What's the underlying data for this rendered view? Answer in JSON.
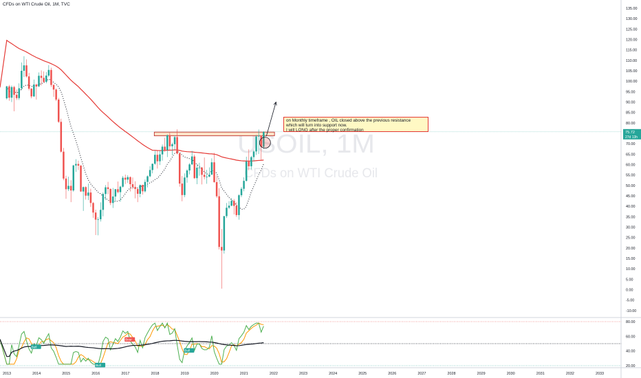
{
  "chart_data": {
    "type": "candlestick",
    "title": "CFDs on WTI Crude Oil, 1M, TVC",
    "watermark": {
      "symbol": "USOIL, 1M",
      "description": "CFDs on WTI Crude Oil"
    },
    "price_axis": {
      "ticks": [
        "135.00",
        "130.00",
        "125.00",
        "120.00",
        "115.00",
        "110.00",
        "105.00",
        "100.00",
        "95.00",
        "90.00",
        "85.00",
        "80.00",
        "75.00",
        "70.00",
        "65.00",
        "60.00",
        "55.00",
        "50.00",
        "45.00",
        "40.00",
        "35.00",
        "30.00",
        "25.00",
        "20.00",
        "15.00",
        "10.00",
        "5.00",
        "0.00",
        "-5.00",
        "-10.00"
      ],
      "range": [
        -10,
        137
      ]
    },
    "time_axis": {
      "ticks": [
        "2013",
        "2014",
        "2015",
        "2016",
        "2017",
        "2018",
        "2019",
        "2020",
        "2021",
        "2022",
        "2023",
        "2024",
        "2025",
        "2026",
        "2027",
        "2028",
        "2029",
        "2030",
        "2031",
        "2032",
        "2033"
      ]
    },
    "last_price": {
      "value": "75.72",
      "countdown": "27d 13h",
      "color": "#26a69a"
    },
    "colors": {
      "up": "#26a69a",
      "down": "#ef5350",
      "ma_long": "#e53935",
      "ma_dotted": "#131722",
      "rsi_fast": "#4caf50",
      "rsi_slow": "#ff9800",
      "rsi_base": "#131722"
    },
    "candles": [
      {
        "t": "2013-01",
        "o": 91.8,
        "h": 97.8,
        "l": 91.2,
        "c": 97.5
      },
      {
        "t": "2013-02",
        "o": 97.5,
        "h": 98.2,
        "l": 90.6,
        "c": 92.1
      },
      {
        "t": "2013-03",
        "o": 92.1,
        "h": 97.9,
        "l": 90.0,
        "c": 97.2
      },
      {
        "t": "2013-04",
        "o": 97.2,
        "h": 97.8,
        "l": 85.6,
        "c": 93.5
      },
      {
        "t": "2013-05",
        "o": 93.5,
        "h": 96.0,
        "l": 91.0,
        "c": 91.9
      },
      {
        "t": "2013-06",
        "o": 91.9,
        "h": 99.0,
        "l": 91.0,
        "c": 96.6
      },
      {
        "t": "2013-07",
        "o": 96.6,
        "h": 109.0,
        "l": 95.8,
        "c": 105.0
      },
      {
        "t": "2013-08",
        "o": 105.0,
        "h": 112.0,
        "l": 102.0,
        "c": 107.6
      },
      {
        "t": "2013-09",
        "o": 107.6,
        "h": 110.5,
        "l": 101.8,
        "c": 102.3
      },
      {
        "t": "2013-10",
        "o": 102.3,
        "h": 104.0,
        "l": 95.6,
        "c": 96.4
      },
      {
        "t": "2013-11",
        "o": 96.4,
        "h": 96.8,
        "l": 91.8,
        "c": 92.7
      },
      {
        "t": "2013-12",
        "o": 92.7,
        "h": 100.8,
        "l": 92.5,
        "c": 98.4
      },
      {
        "t": "2014-01",
        "o": 98.4,
        "h": 98.9,
        "l": 91.2,
        "c": 97.5
      },
      {
        "t": "2014-02",
        "o": 97.5,
        "h": 104.2,
        "l": 97.2,
        "c": 102.6
      },
      {
        "t": "2014-03",
        "o": 102.6,
        "h": 105.2,
        "l": 98.0,
        "c": 101.6
      },
      {
        "t": "2014-04",
        "o": 101.6,
        "h": 104.7,
        "l": 99.1,
        "c": 99.7
      },
      {
        "t": "2014-05",
        "o": 99.7,
        "h": 104.4,
        "l": 99.0,
        "c": 102.7
      },
      {
        "t": "2014-06",
        "o": 102.7,
        "h": 107.7,
        "l": 102.0,
        "c": 105.4
      },
      {
        "t": "2014-07",
        "o": 105.4,
        "h": 106.5,
        "l": 97.2,
        "c": 98.2
      },
      {
        "t": "2014-08",
        "o": 98.2,
        "h": 98.5,
        "l": 92.5,
        "c": 96.0
      },
      {
        "t": "2014-09",
        "o": 96.0,
        "h": 96.5,
        "l": 90.5,
        "c": 91.2
      },
      {
        "t": "2014-10",
        "o": 91.2,
        "h": 92.0,
        "l": 80.0,
        "c": 80.5
      },
      {
        "t": "2014-11",
        "o": 80.5,
        "h": 82.0,
        "l": 65.7,
        "c": 66.2
      },
      {
        "t": "2014-12",
        "o": 66.2,
        "h": 68.0,
        "l": 52.5,
        "c": 53.3
      },
      {
        "t": "2015-01",
        "o": 53.3,
        "h": 54.7,
        "l": 43.6,
        "c": 48.2
      },
      {
        "t": "2015-02",
        "o": 48.2,
        "h": 54.2,
        "l": 47.3,
        "c": 49.8
      },
      {
        "t": "2015-03",
        "o": 49.8,
        "h": 52.5,
        "l": 42.0,
        "c": 47.6
      },
      {
        "t": "2015-04",
        "o": 47.6,
        "h": 59.9,
        "l": 47.0,
        "c": 59.6
      },
      {
        "t": "2015-05",
        "o": 59.6,
        "h": 62.6,
        "l": 56.5,
        "c": 60.3
      },
      {
        "t": "2015-06",
        "o": 60.3,
        "h": 61.9,
        "l": 57.4,
        "c": 59.5
      },
      {
        "t": "2015-07",
        "o": 59.5,
        "h": 59.8,
        "l": 46.9,
        "c": 47.1
      },
      {
        "t": "2015-08",
        "o": 47.1,
        "h": 49.5,
        "l": 37.8,
        "c": 49.2
      },
      {
        "t": "2015-09",
        "o": 49.2,
        "h": 49.6,
        "l": 43.2,
        "c": 45.1
      },
      {
        "t": "2015-10",
        "o": 45.1,
        "h": 50.9,
        "l": 43.0,
        "c": 46.6
      },
      {
        "t": "2015-11",
        "o": 46.6,
        "h": 48.4,
        "l": 39.7,
        "c": 41.6
      },
      {
        "t": "2015-12",
        "o": 41.6,
        "h": 42.0,
        "l": 34.5,
        "c": 37.0
      },
      {
        "t": "2016-01",
        "o": 37.0,
        "h": 38.4,
        "l": 26.2,
        "c": 33.6
      },
      {
        "t": "2016-02",
        "o": 33.6,
        "h": 34.8,
        "l": 26.1,
        "c": 33.8
      },
      {
        "t": "2016-03",
        "o": 33.8,
        "h": 41.9,
        "l": 32.7,
        "c": 38.3
      },
      {
        "t": "2016-04",
        "o": 38.3,
        "h": 46.7,
        "l": 35.2,
        "c": 45.9
      },
      {
        "t": "2016-05",
        "o": 45.9,
        "h": 50.2,
        "l": 43.0,
        "c": 49.1
      },
      {
        "t": "2016-06",
        "o": 49.1,
        "h": 51.7,
        "l": 45.8,
        "c": 48.3
      },
      {
        "t": "2016-07",
        "o": 48.3,
        "h": 48.6,
        "l": 40.6,
        "c": 41.6
      },
      {
        "t": "2016-08",
        "o": 41.6,
        "h": 48.8,
        "l": 39.2,
        "c": 44.7
      },
      {
        "t": "2016-09",
        "o": 44.7,
        "h": 48.3,
        "l": 42.5,
        "c": 48.2
      },
      {
        "t": "2016-10",
        "o": 48.2,
        "h": 51.9,
        "l": 46.2,
        "c": 46.8
      },
      {
        "t": "2016-11",
        "o": 46.8,
        "h": 49.9,
        "l": 42.2,
        "c": 49.4
      },
      {
        "t": "2016-12",
        "o": 49.4,
        "h": 54.5,
        "l": 49.0,
        "c": 53.7
      },
      {
        "t": "2017-01",
        "o": 53.7,
        "h": 55.2,
        "l": 50.7,
        "c": 52.8
      },
      {
        "t": "2017-02",
        "o": 52.8,
        "h": 54.9,
        "l": 51.2,
        "c": 54.0
      },
      {
        "t": "2017-03",
        "o": 54.0,
        "h": 54.3,
        "l": 47.1,
        "c": 50.6
      },
      {
        "t": "2017-04",
        "o": 50.6,
        "h": 53.8,
        "l": 48.2,
        "c": 49.3
      },
      {
        "t": "2017-05",
        "o": 49.3,
        "h": 52.0,
        "l": 43.8,
        "c": 48.3
      },
      {
        "t": "2017-06",
        "o": 48.3,
        "h": 48.5,
        "l": 42.0,
        "c": 46.0
      },
      {
        "t": "2017-07",
        "o": 46.0,
        "h": 50.4,
        "l": 44.3,
        "c": 50.2
      },
      {
        "t": "2017-08",
        "o": 50.2,
        "h": 50.4,
        "l": 45.6,
        "c": 47.2
      },
      {
        "t": "2017-09",
        "o": 47.2,
        "h": 52.9,
        "l": 46.6,
        "c": 51.7
      },
      {
        "t": "2017-10",
        "o": 51.7,
        "h": 54.8,
        "l": 49.1,
        "c": 54.4
      },
      {
        "t": "2017-11",
        "o": 54.4,
        "h": 59.2,
        "l": 54.0,
        "c": 57.4
      },
      {
        "t": "2017-12",
        "o": 57.4,
        "h": 60.5,
        "l": 55.8,
        "c": 60.4
      },
      {
        "t": "2018-01",
        "o": 60.4,
        "h": 66.7,
        "l": 59.9,
        "c": 64.7
      },
      {
        "t": "2018-02",
        "o": 64.7,
        "h": 66.6,
        "l": 58.1,
        "c": 61.6
      },
      {
        "t": "2018-03",
        "o": 61.6,
        "h": 66.6,
        "l": 59.8,
        "c": 64.9
      },
      {
        "t": "2018-04",
        "o": 64.9,
        "h": 69.6,
        "l": 61.9,
        "c": 68.6
      },
      {
        "t": "2018-05",
        "o": 68.6,
        "h": 72.9,
        "l": 66.2,
        "c": 67.0
      },
      {
        "t": "2018-06",
        "o": 67.0,
        "h": 74.4,
        "l": 63.6,
        "c": 74.1
      },
      {
        "t": "2018-07",
        "o": 74.1,
        "h": 75.3,
        "l": 67.0,
        "c": 68.8
      },
      {
        "t": "2018-08",
        "o": 68.8,
        "h": 70.5,
        "l": 64.4,
        "c": 69.8
      },
      {
        "t": "2018-09",
        "o": 69.8,
        "h": 73.9,
        "l": 67.1,
        "c": 73.2
      },
      {
        "t": "2018-10",
        "o": 73.2,
        "h": 76.9,
        "l": 64.9,
        "c": 65.3
      },
      {
        "t": "2018-11",
        "o": 65.3,
        "h": 65.6,
        "l": 49.4,
        "c": 50.9
      },
      {
        "t": "2018-12",
        "o": 50.9,
        "h": 54.5,
        "l": 42.4,
        "c": 45.4
      },
      {
        "t": "2019-01",
        "o": 45.4,
        "h": 55.8,
        "l": 44.4,
        "c": 53.8
      },
      {
        "t": "2019-02",
        "o": 53.8,
        "h": 57.8,
        "l": 51.3,
        "c": 57.2
      },
      {
        "t": "2019-03",
        "o": 57.2,
        "h": 60.7,
        "l": 55.3,
        "c": 60.1
      },
      {
        "t": "2019-04",
        "o": 60.1,
        "h": 66.6,
        "l": 59.8,
        "c": 63.9
      },
      {
        "t": "2019-05",
        "o": 63.9,
        "h": 64.8,
        "l": 53.1,
        "c": 53.5
      },
      {
        "t": "2019-06",
        "o": 53.5,
        "h": 60.1,
        "l": 50.6,
        "c": 58.5
      },
      {
        "t": "2019-07",
        "o": 58.5,
        "h": 60.9,
        "l": 54.7,
        "c": 58.6
      },
      {
        "t": "2019-08",
        "o": 58.6,
        "h": 58.8,
        "l": 50.5,
        "c": 55.1
      },
      {
        "t": "2019-09",
        "o": 55.1,
        "h": 63.4,
        "l": 52.9,
        "c": 54.1
      },
      {
        "t": "2019-10",
        "o": 54.1,
        "h": 57.5,
        "l": 50.8,
        "c": 54.2
      },
      {
        "t": "2019-11",
        "o": 54.2,
        "h": 58.7,
        "l": 54.0,
        "c": 55.2
      },
      {
        "t": "2019-12",
        "o": 55.2,
        "h": 63.0,
        "l": 55.0,
        "c": 61.1
      },
      {
        "t": "2020-01",
        "o": 61.1,
        "h": 65.6,
        "l": 51.3,
        "c": 51.6
      },
      {
        "t": "2020-02",
        "o": 51.6,
        "h": 54.7,
        "l": 44.0,
        "c": 44.8
      },
      {
        "t": "2020-03",
        "o": 44.8,
        "h": 48.7,
        "l": 19.3,
        "c": 20.5
      },
      {
        "t": "2020-04",
        "o": 20.5,
        "h": 29.1,
        "l": 0.5,
        "c": 18.8
      },
      {
        "t": "2020-05",
        "o": 18.8,
        "h": 35.3,
        "l": 17.3,
        "c": 35.3
      },
      {
        "t": "2020-06",
        "o": 35.3,
        "h": 41.6,
        "l": 34.4,
        "c": 39.3
      },
      {
        "t": "2020-07",
        "o": 39.3,
        "h": 42.5,
        "l": 38.7,
        "c": 40.3
      },
      {
        "t": "2020-08",
        "o": 40.3,
        "h": 43.8,
        "l": 40.0,
        "c": 42.6
      },
      {
        "t": "2020-09",
        "o": 42.6,
        "h": 43.5,
        "l": 36.1,
        "c": 40.2
      },
      {
        "t": "2020-10",
        "o": 40.2,
        "h": 41.9,
        "l": 34.9,
        "c": 35.8
      },
      {
        "t": "2020-11",
        "o": 35.8,
        "h": 45.8,
        "l": 33.6,
        "c": 45.3
      },
      {
        "t": "2020-12",
        "o": 45.3,
        "h": 49.3,
        "l": 44.4,
        "c": 48.4
      },
      {
        "t": "2021-01",
        "o": 48.4,
        "h": 53.9,
        "l": 47.2,
        "c": 52.2
      },
      {
        "t": "2021-02",
        "o": 52.2,
        "h": 63.8,
        "l": 51.9,
        "c": 61.5
      },
      {
        "t": "2021-03",
        "o": 61.5,
        "h": 67.3,
        "l": 57.3,
        "c": 59.2
      },
      {
        "t": "2021-04",
        "o": 59.2,
        "h": 64.2,
        "l": 57.7,
        "c": 63.6
      },
      {
        "t": "2021-05",
        "o": 63.6,
        "h": 67.0,
        "l": 61.6,
        "c": 66.3
      },
      {
        "t": "2021-06",
        "o": 66.3,
        "h": 74.2,
        "l": 64.6,
        "c": 73.5
      },
      {
        "t": "2021-07",
        "o": 73.5,
        "h": 76.8,
        "l": 65.1,
        "c": 73.9
      },
      {
        "t": "2021-08",
        "o": 73.9,
        "h": 74.0,
        "l": 61.8,
        "c": 68.5
      },
      {
        "t": "2021-09",
        "o": 68.5,
        "h": 76.0,
        "l": 67.6,
        "c": 75.7
      }
    ],
    "resistance_zone": {
      "from": "2018-01",
      "to": "2021-12",
      "low": 73.8,
      "high": 75.6
    },
    "annotation": {
      "lines": [
        "on Monthly timeframe , OIL closed above the previous resistance",
        "which will turn into support now.",
        "I will LONG after the proper confirmation"
      ]
    },
    "arrow": {
      "from": {
        "t": "2021-09",
        "price": 75.0
      },
      "to": {
        "t": "2022-02",
        "price": 90.0
      }
    },
    "indicator": {
      "ticks": [
        "80.00",
        "60.00",
        "40.00",
        "20.00"
      ],
      "range": [
        20,
        80
      ],
      "levels": [
        80,
        50,
        20
      ],
      "labels": [
        {
          "text": "Bull",
          "t": "2013-11",
          "value": 46,
          "color": "#26a69a"
        },
        {
          "text": "Bull",
          "t": "2016-01",
          "value": 21,
          "color": "#26a69a"
        },
        {
          "text": "Bear",
          "t": "2017-01",
          "value": 56,
          "color": "#ef5350"
        },
        {
          "text": "Bull",
          "t": "2019-01",
          "value": 41,
          "color": "#26a69a"
        }
      ]
    }
  }
}
